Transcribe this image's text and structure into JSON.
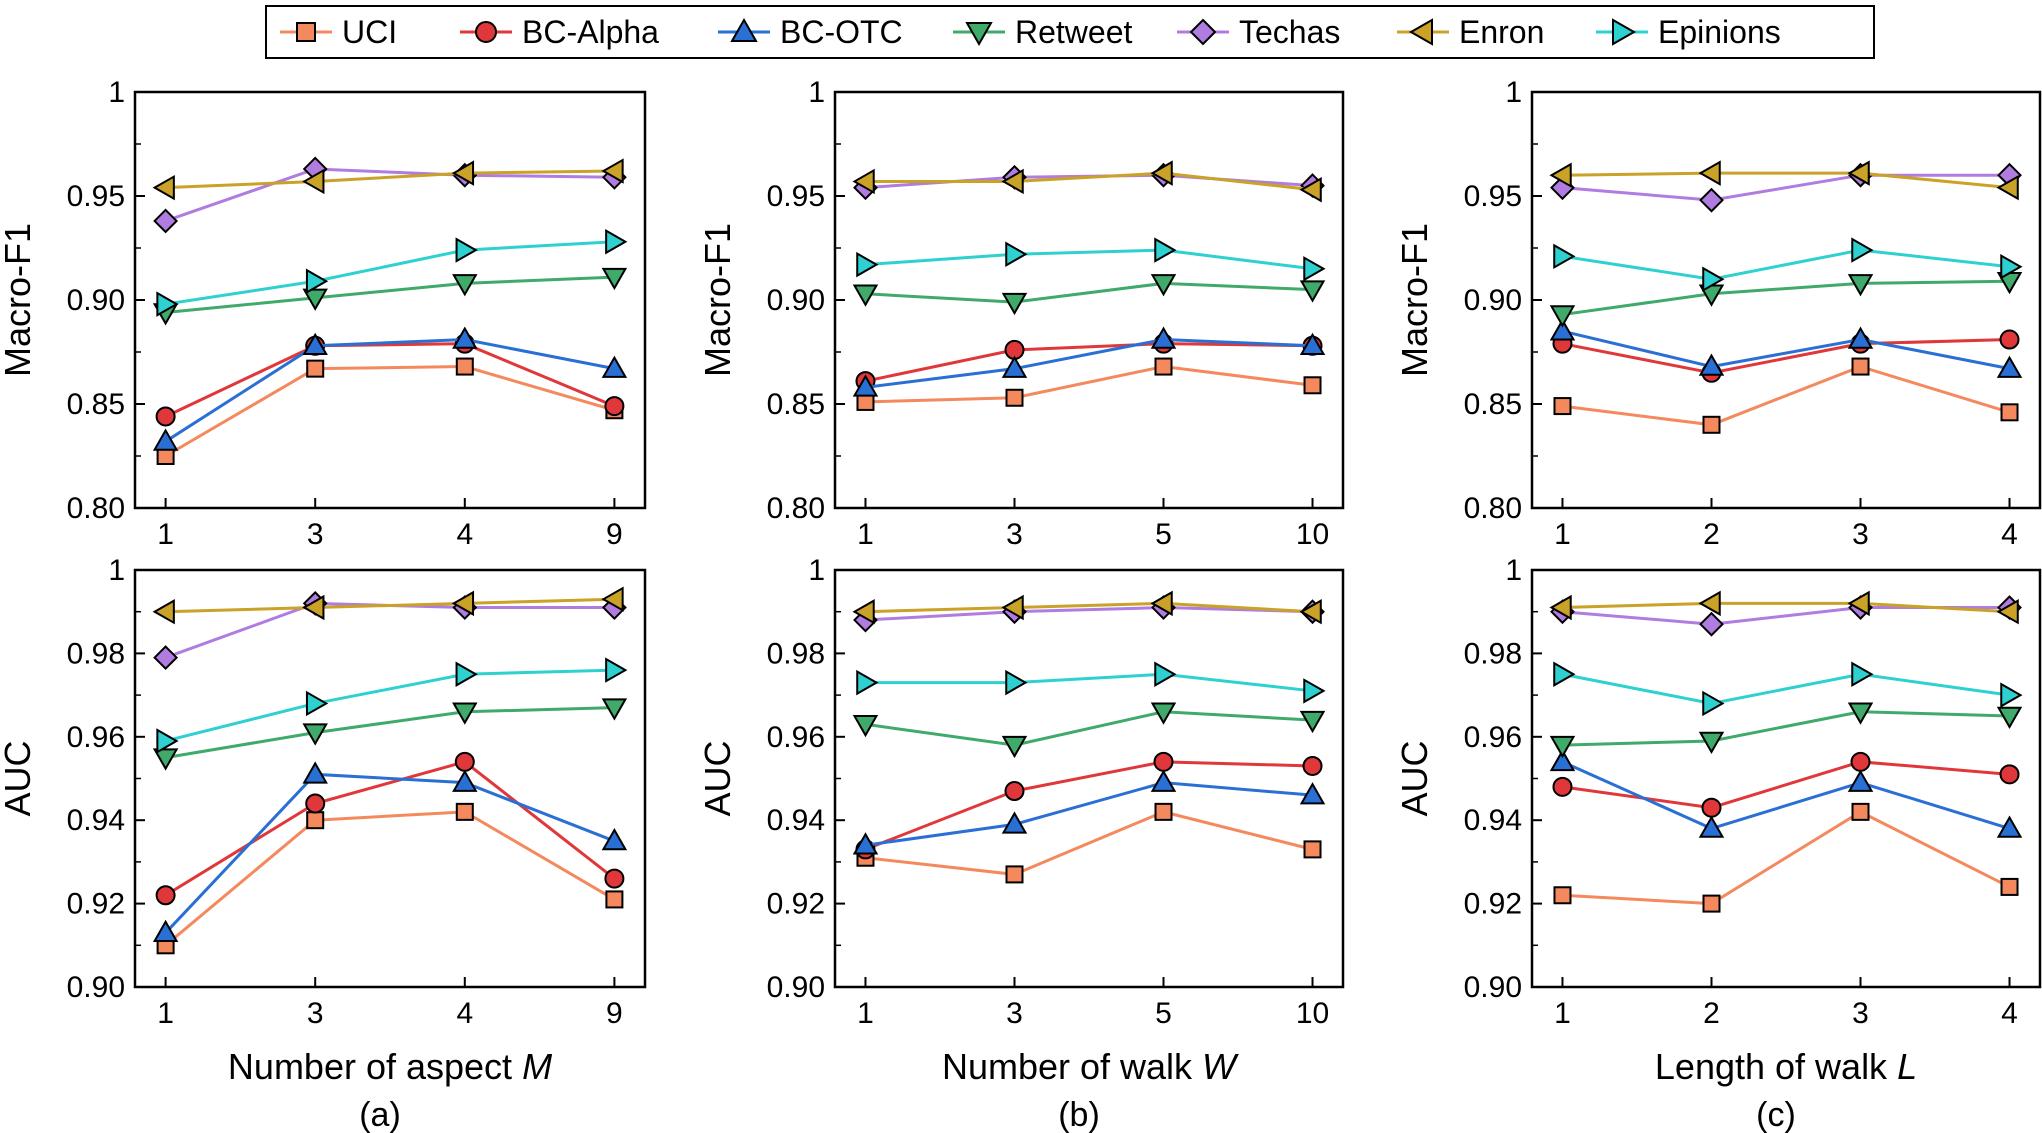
{
  "legend": [
    "UCI",
    "BC-Alpha",
    "BC-OTC",
    "Retweet",
    "Techas",
    "Enron",
    "Epinions"
  ],
  "series_styles": [
    {
      "name": "UCI",
      "color": "#f4895e",
      "marker": "square"
    },
    {
      "name": "BC-Alpha",
      "color": "#e0383a",
      "marker": "circle"
    },
    {
      "name": "BC-OTC",
      "color": "#2a6fd4",
      "marker": "triangle-up"
    },
    {
      "name": "Retweet",
      "color": "#3faa6a",
      "marker": "triangle-down"
    },
    {
      "name": "Techas",
      "color": "#b07ce0",
      "marker": "diamond"
    },
    {
      "name": "Enron",
      "color": "#c9a227",
      "marker": "triangle-left"
    },
    {
      "name": "Epinions",
      "color": "#2fd0d0",
      "marker": "triangle-right"
    }
  ],
  "captions": [
    "(a)",
    "(b)",
    "(c)"
  ],
  "chart_data": [
    {
      "type": "line",
      "panel": "a-top",
      "categories": [
        "1",
        "3",
        "4",
        "9"
      ],
      "ylabel": "Macro-F1",
      "xlabel": "",
      "ylim": [
        0.8,
        1.0
      ],
      "yticks": [
        "0.80",
        "0.85",
        "0.90",
        "0.95",
        "1"
      ],
      "series": [
        {
          "name": "UCI",
          "values": [
            0.825,
            0.867,
            0.868,
            0.847
          ]
        },
        {
          "name": "BC-Alpha",
          "values": [
            0.844,
            0.878,
            0.879,
            0.849
          ]
        },
        {
          "name": "BC-OTC",
          "values": [
            0.832,
            0.878,
            0.881,
            0.867
          ]
        },
        {
          "name": "Retweet",
          "values": [
            0.894,
            0.901,
            0.908,
            0.911
          ]
        },
        {
          "name": "Techas",
          "values": [
            0.938,
            0.963,
            0.96,
            0.959
          ]
        },
        {
          "name": "Enron",
          "values": [
            0.954,
            0.957,
            0.961,
            0.962
          ]
        },
        {
          "name": "Epinions",
          "values": [
            0.898,
            0.909,
            0.924,
            0.928
          ]
        }
      ]
    },
    {
      "type": "line",
      "panel": "b-top",
      "categories": [
        "1",
        "3",
        "5",
        "10"
      ],
      "ylabel": "Macro-F1",
      "xlabel": "",
      "ylim": [
        0.8,
        1.0
      ],
      "yticks": [
        "0.80",
        "0.85",
        "0.90",
        "0.95",
        "1"
      ],
      "series": [
        {
          "name": "UCI",
          "values": [
            0.851,
            0.853,
            0.868,
            0.859
          ]
        },
        {
          "name": "BC-Alpha",
          "values": [
            0.861,
            0.876,
            0.879,
            0.878
          ]
        },
        {
          "name": "BC-OTC",
          "values": [
            0.858,
            0.867,
            0.881,
            0.878
          ]
        },
        {
          "name": "Retweet",
          "values": [
            0.903,
            0.899,
            0.908,
            0.905
          ]
        },
        {
          "name": "Techas",
          "values": [
            0.954,
            0.959,
            0.96,
            0.955
          ]
        },
        {
          "name": "Enron",
          "values": [
            0.957,
            0.957,
            0.961,
            0.953
          ]
        },
        {
          "name": "Epinions",
          "values": [
            0.917,
            0.922,
            0.924,
            0.915
          ]
        }
      ]
    },
    {
      "type": "line",
      "panel": "c-top",
      "categories": [
        "1",
        "2",
        "3",
        "4"
      ],
      "ylabel": "Macro-F1",
      "xlabel": "",
      "ylim": [
        0.8,
        1.0
      ],
      "yticks": [
        "0.80",
        "0.85",
        "0.90",
        "0.95",
        "1"
      ],
      "series": [
        {
          "name": "UCI",
          "values": [
            0.849,
            0.84,
            0.868,
            0.846
          ]
        },
        {
          "name": "BC-Alpha",
          "values": [
            0.879,
            0.865,
            0.879,
            0.881
          ]
        },
        {
          "name": "BC-OTC",
          "values": [
            0.885,
            0.868,
            0.881,
            0.867
          ]
        },
        {
          "name": "Retweet",
          "values": [
            0.893,
            0.903,
            0.908,
            0.909
          ]
        },
        {
          "name": "Techas",
          "values": [
            0.954,
            0.948,
            0.96,
            0.96
          ]
        },
        {
          "name": "Enron",
          "values": [
            0.96,
            0.961,
            0.961,
            0.954
          ]
        },
        {
          "name": "Epinions",
          "values": [
            0.921,
            0.91,
            0.924,
            0.916
          ]
        }
      ]
    },
    {
      "type": "line",
      "panel": "a-bottom",
      "categories": [
        "1",
        "3",
        "4",
        "9"
      ],
      "ylabel": "AUC",
      "xlabel": "Number of aspect M",
      "ylim": [
        0.9,
        1.0
      ],
      "yticks": [
        "0.90",
        "0.92",
        "0.94",
        "0.96",
        "0.98",
        "1"
      ],
      "series": [
        {
          "name": "UCI",
          "values": [
            0.91,
            0.94,
            0.942,
            0.921
          ]
        },
        {
          "name": "BC-Alpha",
          "values": [
            0.922,
            0.944,
            0.954,
            0.926
          ]
        },
        {
          "name": "BC-OTC",
          "values": [
            0.913,
            0.951,
            0.949,
            0.935
          ]
        },
        {
          "name": "Retweet",
          "values": [
            0.955,
            0.961,
            0.966,
            0.967
          ]
        },
        {
          "name": "Techas",
          "values": [
            0.979,
            0.992,
            0.991,
            0.991
          ]
        },
        {
          "name": "Enron",
          "values": [
            0.99,
            0.991,
            0.992,
            0.993
          ]
        },
        {
          "name": "Epinions",
          "values": [
            0.959,
            0.968,
            0.975,
            0.976
          ]
        }
      ]
    },
    {
      "type": "line",
      "panel": "b-bottom",
      "categories": [
        "1",
        "3",
        "5",
        "10"
      ],
      "ylabel": "AUC",
      "xlabel": "Number of walk W",
      "ylim": [
        0.9,
        1.0
      ],
      "yticks": [
        "0.90",
        "0.92",
        "0.94",
        "0.96",
        "0.98",
        "1"
      ],
      "series": [
        {
          "name": "UCI",
          "values": [
            0.931,
            0.927,
            0.942,
            0.933
          ]
        },
        {
          "name": "BC-Alpha",
          "values": [
            0.933,
            0.947,
            0.954,
            0.953
          ]
        },
        {
          "name": "BC-OTC",
          "values": [
            0.934,
            0.939,
            0.949,
            0.946
          ]
        },
        {
          "name": "Retweet",
          "values": [
            0.963,
            0.958,
            0.966,
            0.964
          ]
        },
        {
          "name": "Techas",
          "values": [
            0.988,
            0.99,
            0.991,
            0.99
          ]
        },
        {
          "name": "Enron",
          "values": [
            0.99,
            0.991,
            0.992,
            0.99
          ]
        },
        {
          "name": "Epinions",
          "values": [
            0.973,
            0.973,
            0.975,
            0.971
          ]
        }
      ]
    },
    {
      "type": "line",
      "panel": "c-bottom",
      "categories": [
        "1",
        "2",
        "3",
        "4"
      ],
      "ylabel": "AUC",
      "xlabel": "Length of walk L",
      "ylim": [
        0.9,
        1.0
      ],
      "yticks": [
        "0.90",
        "0.92",
        "0.94",
        "0.96",
        "0.98",
        "1"
      ],
      "series": [
        {
          "name": "UCI",
          "values": [
            0.922,
            0.92,
            0.942,
            0.924
          ]
        },
        {
          "name": "BC-Alpha",
          "values": [
            0.948,
            0.943,
            0.954,
            0.951
          ]
        },
        {
          "name": "BC-OTC",
          "values": [
            0.954,
            0.938,
            0.949,
            0.938
          ]
        },
        {
          "name": "Retweet",
          "values": [
            0.958,
            0.959,
            0.966,
            0.965
          ]
        },
        {
          "name": "Techas",
          "values": [
            0.99,
            0.987,
            0.991,
            0.991
          ]
        },
        {
          "name": "Enron",
          "values": [
            0.991,
            0.992,
            0.992,
            0.99
          ]
        },
        {
          "name": "Epinions",
          "values": [
            0.975,
            0.968,
            0.975,
            0.97
          ]
        }
      ]
    }
  ]
}
